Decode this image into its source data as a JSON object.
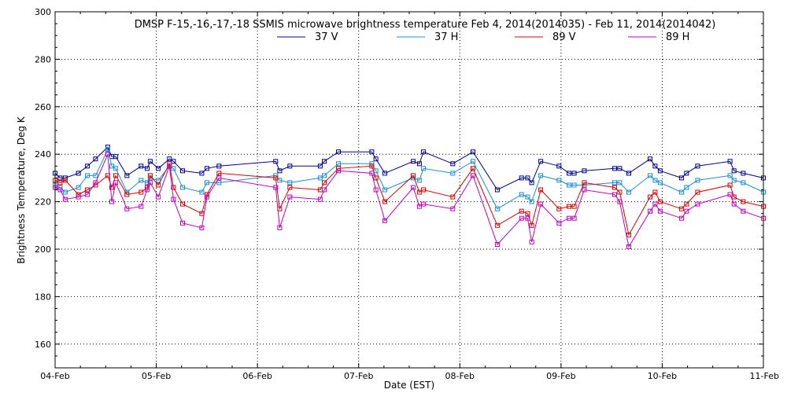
{
  "chart_data": {
    "type": "line",
    "title": "DMSP F-15,-16,-17,-18 SSMIS microwave brightness temperature Feb  4, 2014(2014035) - Feb 11, 2014(2014042)",
    "xlabel": "Date (EST)",
    "ylabel": "Brightness Temperature, Deg K",
    "xlim": [
      0,
      7
    ],
    "ylim": [
      150,
      300
    ],
    "yticks": [
      160,
      180,
      200,
      220,
      240,
      260,
      280,
      300
    ],
    "xticks": [
      0,
      1,
      2,
      3,
      4,
      5,
      6,
      7
    ],
    "xtick_labels": [
      "04-Feb",
      "05-Feb",
      "06-Feb",
      "07-Feb",
      "08-Feb",
      "09-Feb",
      "10-Feb",
      "11-Feb"
    ],
    "grid": true,
    "legend_position": "top-center",
    "x": [
      0.0,
      0.05,
      0.1,
      0.23,
      0.32,
      0.4,
      0.52,
      0.56,
      0.6,
      0.71,
      0.85,
      0.91,
      0.94,
      1.02,
      1.13,
      1.17,
      1.26,
      1.45,
      1.5,
      1.62,
      2.18,
      2.22,
      2.32,
      2.62,
      2.66,
      2.8,
      3.13,
      3.17,
      3.26,
      3.54,
      3.6,
      3.64,
      3.93,
      4.13,
      4.37,
      4.61,
      4.67,
      4.71,
      4.8,
      4.98,
      5.08,
      5.13,
      5.23,
      5.53,
      5.58,
      5.67,
      5.88,
      5.93,
      5.98,
      6.19,
      6.24,
      6.35,
      6.67,
      6.71,
      6.8,
      7.0
    ],
    "series": [
      {
        "name": "37 V",
        "color": "#00008c",
        "values": [
          232,
          230,
          230,
          232,
          235,
          238,
          243,
          239,
          239,
          231,
          235,
          234,
          237,
          234,
          238,
          237,
          233,
          232,
          234,
          235,
          237,
          233,
          235,
          235,
          237,
          241,
          241,
          238,
          232,
          237,
          236,
          241,
          236,
          241,
          225,
          230,
          230,
          228,
          237,
          235,
          232,
          232,
          233,
          234,
          234,
          232,
          238,
          235,
          233,
          230,
          232,
          235,
          237,
          233,
          232,
          230
        ]
      },
      {
        "name": "37 H",
        "color": "#1890d0",
        "values": [
          227,
          226,
          224,
          226,
          231,
          231,
          242,
          235,
          234,
          224,
          229,
          228,
          230,
          229,
          235,
          234,
          226,
          224,
          228,
          228,
          231,
          229,
          228,
          230,
          231,
          236,
          236,
          233,
          225,
          230,
          229,
          234,
          232,
          237,
          217,
          223,
          222,
          220,
          231,
          229,
          227,
          227,
          227,
          228,
          228,
          224,
          231,
          229,
          228,
          224,
          226,
          229,
          231,
          229,
          228,
          224
        ]
      },
      {
        "name": "89 V",
        "color": "#d80000",
        "values": [
          229,
          228,
          229,
          223,
          225,
          227,
          231,
          226,
          231,
          223,
          224,
          226,
          231,
          227,
          236,
          226,
          219,
          215,
          223,
          232,
          230,
          217,
          226,
          225,
          228,
          234,
          235,
          230,
          220,
          231,
          224,
          225,
          222,
          234,
          210,
          216,
          215,
          210,
          225,
          217,
          218,
          218,
          228,
          226,
          224,
          206,
          222,
          224,
          220,
          217,
          219,
          224,
          227,
          222,
          220,
          218
        ]
      },
      {
        "name": "89 H",
        "color": "#c000c0",
        "values": [
          226,
          225,
          221,
          222,
          223,
          228,
          240,
          220,
          228,
          217,
          218,
          225,
          228,
          222,
          235,
          221,
          211,
          209,
          222,
          230,
          226,
          209,
          222,
          221,
          225,
          233,
          232,
          225,
          212,
          226,
          218,
          219,
          217,
          231,
          202,
          213,
          213,
          203,
          219,
          211,
          213,
          213,
          225,
          223,
          220,
          201,
          216,
          219,
          216,
          213,
          216,
          219,
          223,
          219,
          216,
          213
        ]
      }
    ]
  }
}
